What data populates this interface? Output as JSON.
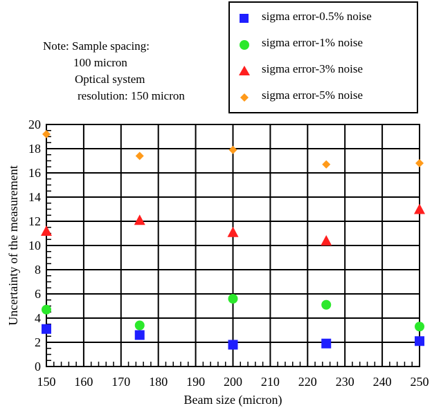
{
  "note": {
    "lines": [
      "Note: Sample spacing:",
      "100 micron",
      "Optical system",
      "resolution: 150 micron"
    ]
  },
  "chart_data": {
    "type": "scatter",
    "xlabel": "Beam size (micron)",
    "ylabel": "Uncertainty of the measurement",
    "xlim": [
      150,
      250
    ],
    "ylim": [
      0,
      20
    ],
    "x_ticks": [
      "150",
      "160",
      "170",
      "180",
      "190",
      "200",
      "210",
      "220",
      "230",
      "240",
      "250"
    ],
    "y_ticks": [
      "0",
      "2",
      "4",
      "6",
      "8",
      "10",
      "12",
      "14",
      "16",
      "18",
      "20"
    ],
    "grid": true,
    "legend_position": "top-right",
    "series": [
      {
        "name": "sigma error-0.5% noise",
        "marker": "square",
        "color": "#1f1fff",
        "x": [
          150,
          175,
          200,
          225,
          250
        ],
        "y": [
          3.1,
          2.6,
          1.8,
          1.9,
          2.1
        ]
      },
      {
        "name": "sigma error-1% noise",
        "marker": "circle",
        "color": "#2be82b",
        "x": [
          150,
          175,
          200,
          225,
          250
        ],
        "y": [
          4.7,
          3.4,
          5.6,
          5.1,
          3.3
        ]
      },
      {
        "name": "sigma error-3% noise",
        "marker": "triangle",
        "color": "#ff1f1f",
        "x": [
          150,
          175,
          200,
          225,
          250
        ],
        "y": [
          11.2,
          12.1,
          11.1,
          10.4,
          13.0
        ]
      },
      {
        "name": "sigma error-5% noise",
        "marker": "diamond",
        "color": "#ff9a1a",
        "x": [
          150,
          175,
          200,
          225,
          250
        ],
        "y": [
          19.2,
          17.4,
          17.9,
          16.7,
          16.8
        ]
      }
    ]
  }
}
